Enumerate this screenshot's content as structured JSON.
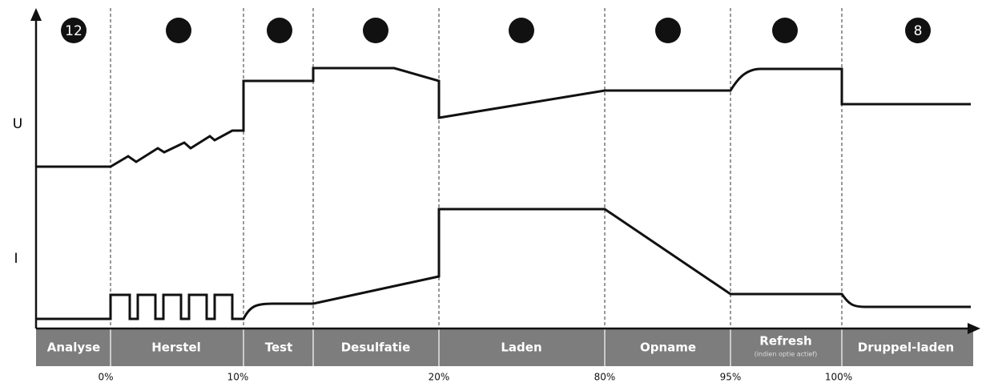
{
  "axis_labels": {
    "voltage": "U",
    "current": "I"
  },
  "step_badges": [
    "12",
    null,
    null,
    null,
    null,
    null,
    null,
    "8"
  ],
  "stages": [
    {
      "label": "Analyse"
    },
    {
      "label": "Herstel"
    },
    {
      "label": "Test"
    },
    {
      "label": "Desulfatie"
    },
    {
      "label": "Laden"
    },
    {
      "label": "Opname"
    },
    {
      "label": "Refresh",
      "note": "(indien optie actief)"
    },
    {
      "label": "Druppel-laden"
    }
  ],
  "percentages": [
    "0%",
    "10%",
    "20%",
    "80%",
    "95%",
    "100%"
  ]
}
